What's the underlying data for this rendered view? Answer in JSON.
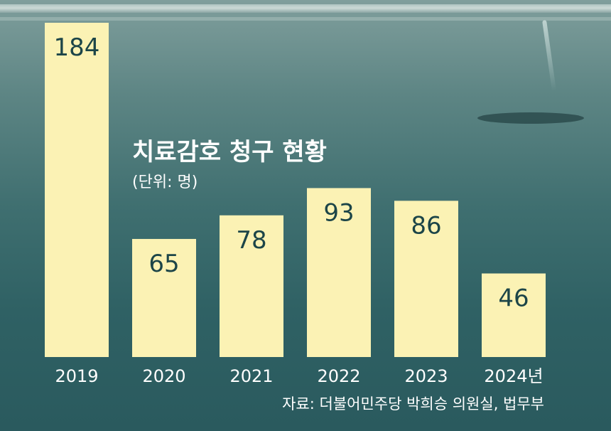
{
  "chart_data": {
    "type": "bar",
    "title": "치료감호 청구 현황",
    "unit": "(단위: 명)",
    "source": "자료: 더불어민주당 박희승 의원실, 법무부",
    "categories": [
      "2019",
      "2020",
      "2021",
      "2022",
      "2023",
      "2024년"
    ],
    "values": [
      184,
      65,
      78,
      93,
      86,
      46
    ],
    "ylim": [
      0,
      184
    ],
    "grid": false,
    "colors": {
      "bar": "#fbf2b4",
      "value_text": "#1c4548",
      "tick_text": "#ffffff"
    }
  }
}
